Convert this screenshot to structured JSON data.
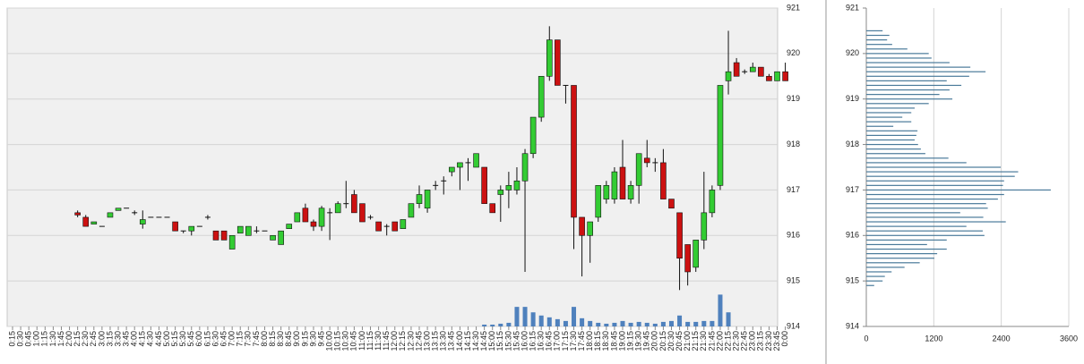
{
  "chart_data": [
    {
      "type": "candlestick",
      "categories": [
        "0:15",
        "0:30",
        "0:45",
        "1:00",
        "1:15",
        "1:30",
        "1:45",
        "2:00",
        "2:15",
        "2:30",
        "2:45",
        "3:00",
        "3:15",
        "3:30",
        "3:45",
        "4:00",
        "4:15",
        "4:30",
        "4:45",
        "5:00",
        "5:15",
        "5:30",
        "5:45",
        "6:00",
        "6:15",
        "6:30",
        "6:45",
        "7:00",
        "7:15",
        "7:30",
        "7:45",
        "8:00",
        "8:15",
        "8:30",
        "8:45",
        "9:00",
        "9:15",
        "9:30",
        "9:45",
        "10:00",
        "10:15",
        "10:30",
        "10:45",
        "11:00",
        "11:15",
        "11:30",
        "11:45",
        "12:00",
        "12:15",
        "12:30",
        "12:45",
        "13:00",
        "13:15",
        "13:30",
        "13:45",
        "14:00",
        "14:15",
        "14:30",
        "14:45",
        "15:00",
        "15:15",
        "15:30",
        "15:45",
        "16:00",
        "16:15",
        "16:30",
        "16:45",
        "17:00",
        "17:15",
        "17:30",
        "17:45",
        "18:00",
        "18:15",
        "18:30",
        "18:45",
        "19:00",
        "19:15",
        "19:30",
        "19:45",
        "20:00",
        "20:15",
        "20:30",
        "20:45",
        "21:00",
        "21:15",
        "21:30",
        "21:45",
        "22:00",
        "22:15",
        "22:30",
        "22:45",
        "23:00",
        "23:15",
        "23:30",
        "23:45",
        "0:00"
      ],
      "open": [
        null,
        null,
        null,
        null,
        null,
        null,
        null,
        null,
        916.5,
        916.4,
        916.25,
        916.2,
        916.4,
        916.55,
        916.6,
        916.5,
        916.25,
        916.4,
        916.4,
        916.4,
        916.3,
        916.1,
        916.1,
        916.2,
        916.4,
        916.1,
        916.1,
        915.7,
        916.05,
        916.0,
        916.1,
        916.1,
        915.9,
        915.8,
        916.15,
        916.3,
        916.6,
        916.3,
        916.2,
        916.5,
        916.5,
        916.7,
        916.9,
        916.7,
        916.4,
        916.3,
        916.2,
        916.3,
        916.15,
        916.4,
        916.7,
        916.6,
        917.1,
        917.2,
        917.4,
        917.5,
        917.6,
        917.5,
        917.5,
        916.7,
        916.9,
        917.0,
        917.0,
        917.2,
        917.8,
        918.6,
        919.5,
        920.3,
        919.3,
        919.3,
        916.4,
        916.0,
        916.4,
        916.8,
        916.8,
        917.5,
        916.8,
        917.1,
        917.7,
        917.6,
        917.6,
        916.8,
        916.5,
        915.8,
        915.3,
        915.9,
        916.5,
        917.1,
        919.4,
        919.8,
        919.6,
        919.6,
        919.7,
        919.5,
        919.4,
        919.6
      ],
      "high": [
        null,
        null,
        null,
        null,
        null,
        null,
        null,
        null,
        916.55,
        916.45,
        916.3,
        916.2,
        916.5,
        916.6,
        916.6,
        916.55,
        916.55,
        916.4,
        916.4,
        916.4,
        916.3,
        916.1,
        916.2,
        916.2,
        916.45,
        916.1,
        916.1,
        916.0,
        916.2,
        916.2,
        916.2,
        916.1,
        916.0,
        916.1,
        916.25,
        916.5,
        916.7,
        916.35,
        916.65,
        916.6,
        916.75,
        917.2,
        917.0,
        916.7,
        916.45,
        916.3,
        916.25,
        916.3,
        916.35,
        916.7,
        917.1,
        917.0,
        917.2,
        917.3,
        917.5,
        917.6,
        917.7,
        917.8,
        917.5,
        916.7,
        917.1,
        917.4,
        917.5,
        917.9,
        918.6,
        919.5,
        920.6,
        920.3,
        919.3,
        919.3,
        916.4,
        916.3,
        917.1,
        917.2,
        917.5,
        918.1,
        917.2,
        917.8,
        918.1,
        917.7,
        917.9,
        916.8,
        916.5,
        915.8,
        915.9,
        917.4,
        917.1,
        919.3,
        920.5,
        919.9,
        919.65,
        919.8,
        919.7,
        919.55,
        919.6,
        919.8
      ],
      "low": [
        null,
        null,
        null,
        null,
        null,
        null,
        null,
        null,
        916.4,
        916.2,
        916.25,
        916.2,
        916.4,
        916.55,
        916.6,
        916.45,
        916.15,
        916.4,
        916.4,
        916.4,
        916.1,
        916.05,
        916.0,
        916.2,
        916.35,
        915.9,
        915.9,
        915.7,
        916.05,
        916.0,
        916.05,
        916.1,
        915.9,
        915.8,
        916.15,
        916.3,
        916.3,
        916.1,
        916.1,
        915.9,
        916.5,
        916.6,
        916.5,
        916.3,
        916.35,
        916.1,
        916.0,
        916.1,
        916.15,
        916.4,
        916.6,
        916.5,
        917.0,
        916.9,
        917.3,
        917.0,
        917.2,
        917.5,
        916.7,
        916.5,
        916.3,
        916.6,
        916.9,
        915.2,
        917.7,
        918.5,
        919.4,
        919.3,
        918.9,
        915.7,
        915.1,
        915.4,
        916.3,
        916.7,
        916.7,
        916.8,
        916.7,
        916.7,
        917.5,
        917.4,
        916.8,
        916.6,
        914.8,
        914.9,
        915.2,
        915.7,
        916.4,
        917.0,
        919.1,
        919.5,
        919.55,
        919.6,
        919.5,
        919.4,
        919.4,
        919.4
      ],
      "close": [
        null,
        null,
        null,
        null,
        null,
        null,
        null,
        null,
        916.45,
        916.2,
        916.3,
        916.2,
        916.5,
        916.6,
        916.6,
        916.5,
        916.35,
        916.4,
        916.4,
        916.4,
        916.1,
        916.1,
        916.2,
        916.2,
        916.4,
        915.9,
        915.9,
        916.0,
        916.2,
        916.2,
        916.1,
        916.1,
        916.0,
        916.1,
        916.25,
        916.5,
        916.3,
        916.2,
        916.6,
        916.5,
        916.7,
        916.7,
        916.5,
        916.3,
        916.4,
        916.1,
        916.2,
        916.1,
        916.35,
        916.7,
        916.9,
        917.0,
        917.1,
        917.2,
        917.5,
        917.6,
        917.6,
        917.8,
        916.7,
        916.5,
        917.0,
        917.1,
        917.2,
        917.8,
        918.6,
        919.5,
        920.3,
        919.3,
        919.3,
        916.4,
        916.0,
        916.3,
        917.1,
        917.1,
        917.4,
        916.8,
        917.1,
        917.8,
        917.6,
        917.6,
        916.8,
        916.6,
        915.5,
        915.2,
        915.9,
        916.5,
        917.0,
        919.3,
        919.6,
        919.5,
        919.6,
        919.7,
        919.5,
        919.4,
        919.6,
        919.4
      ],
      "volume": [
        null,
        null,
        null,
        null,
        null,
        null,
        null,
        null,
        null,
        null,
        null,
        null,
        null,
        null,
        null,
        null,
        null,
        null,
        null,
        null,
        null,
        null,
        null,
        null,
        null,
        null,
        null,
        null,
        null,
        null,
        null,
        null,
        null,
        null,
        null,
        null,
        null,
        null,
        null,
        null,
        null,
        null,
        null,
        null,
        null,
        null,
        null,
        null,
        null,
        null,
        null,
        null,
        null,
        null,
        null,
        null,
        null,
        null,
        0.04,
        0.04,
        0.06,
        0.08,
        0.43,
        0.43,
        0.31,
        0.24,
        0.2,
        0.16,
        0.12,
        0.43,
        0.18,
        0.12,
        0.08,
        0.06,
        0.08,
        0.12,
        0.08,
        0.1,
        0.08,
        0.06,
        0.1,
        0.12,
        0.24,
        0.1,
        0.1,
        0.12,
        0.12,
        0.7,
        0.31,
        null,
        null,
        null,
        null,
        null,
        null,
        null
      ],
      "up_color": "#33cc33",
      "down_color": "#cc1111",
      "volume_color": "#4f81bd",
      "ylim": [
        914,
        921
      ],
      "yticks": [
        914,
        915,
        916,
        917,
        918,
        919,
        920,
        921
      ],
      "grid": true
    },
    {
      "type": "barh",
      "y": [
        920.5,
        920.4,
        920.3,
        920.2,
        920.1,
        920.0,
        919.9,
        919.8,
        919.7,
        919.6,
        919.5,
        919.4,
        919.3,
        919.2,
        919.1,
        919.0,
        918.9,
        918.8,
        918.7,
        918.6,
        918.5,
        918.4,
        918.3,
        918.2,
        918.1,
        918.0,
        917.9,
        917.8,
        917.7,
        917.6,
        917.5,
        917.4,
        917.3,
        917.2,
        917.1,
        917.0,
        916.9,
        916.8,
        916.7,
        916.6,
        916.5,
        916.4,
        916.3,
        916.2,
        916.1,
        916.0,
        915.9,
        915.8,
        915.7,
        915.6,
        915.5,
        915.4,
        915.3,
        915.2,
        915.1,
        915.0,
        914.9
      ],
      "values": [
        290,
        410,
        370,
        460,
        730,
        1110,
        1160,
        1480,
        1850,
        2120,
        1830,
        1430,
        1690,
        1480,
        1300,
        1530,
        1110,
        860,
        800,
        640,
        800,
        480,
        910,
        890,
        860,
        920,
        970,
        1050,
        1460,
        1780,
        2390,
        2700,
        2640,
        2450,
        2430,
        3280,
        2450,
        2340,
        2130,
        2160,
        1670,
        2080,
        2480,
        1780,
        2070,
        2100,
        1430,
        1080,
        1430,
        1260,
        1210,
        950,
        680,
        450,
        330,
        290,
        140
      ],
      "color": "#4a7a9a",
      "xlim": [
        0,
        3600
      ],
      "xticks": [
        0,
        1200,
        2400,
        3600
      ],
      "ylim": [
        914,
        921
      ],
      "yticks": [
        914,
        915,
        916,
        917,
        918,
        919,
        920,
        921
      ],
      "grid": true
    }
  ]
}
